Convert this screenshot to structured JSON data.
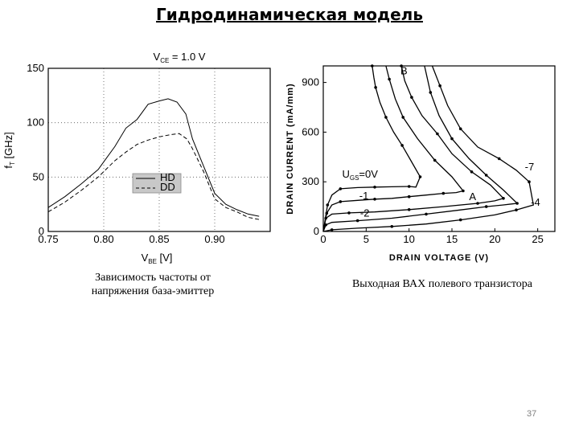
{
  "page": {
    "title": "Гидродинамическая модель",
    "caption_left_1": "Зависимость частоты от",
    "caption_left_2": "напряжения база-эмиттер",
    "caption_right": "Выходная ВАХ полевого транзистора",
    "page_number": "37"
  },
  "chart_data": [
    {
      "type": "line",
      "title": "V_CE = 1.0 V",
      "title_parts": {
        "main": "V",
        "sub": "CE",
        "rest": " = 1.0 V"
      },
      "xlabel_parts": {
        "main": "V",
        "sub": "BE",
        "rest": " [V]"
      },
      "ylabel_parts": {
        "main": "f",
        "sub": "T",
        "rest": " [GHz]"
      },
      "xlim": [
        0.75,
        0.95
      ],
      "ylim": [
        0,
        150
      ],
      "xticks": [
        0.75,
        0.8,
        0.85,
        0.9
      ],
      "xtick_labels": [
        "0.75",
        "0.80",
        "0.85",
        "0.90"
      ],
      "yticks": [
        0,
        50,
        100,
        150
      ],
      "ytick_labels": [
        "0",
        "50",
        "100",
        "150"
      ],
      "grid": "dotted",
      "legend_position": "center",
      "series": [
        {
          "name": "HD",
          "style": "solid",
          "x": [
            0.75,
            0.765,
            0.78,
            0.795,
            0.81,
            0.82,
            0.83,
            0.84,
            0.85,
            0.858,
            0.866,
            0.874,
            0.88,
            0.89,
            0.9,
            0.91,
            0.92,
            0.93,
            0.94
          ],
          "y": [
            22,
            32,
            44,
            57,
            78,
            95,
            103,
            117,
            120,
            122,
            119,
            108,
            85,
            60,
            35,
            25,
            20,
            16,
            14
          ]
        },
        {
          "name": "DD",
          "style": "dashed",
          "x": [
            0.75,
            0.765,
            0.78,
            0.795,
            0.81,
            0.82,
            0.83,
            0.84,
            0.85,
            0.86,
            0.868,
            0.875,
            0.88,
            0.89,
            0.9,
            0.91,
            0.92,
            0.93,
            0.94
          ],
          "y": [
            18,
            27,
            38,
            50,
            65,
            73,
            80,
            84,
            87,
            89,
            90,
            85,
            76,
            55,
            30,
            22,
            18,
            13,
            11
          ]
        }
      ]
    },
    {
      "type": "line",
      "xlabel": "DRAIN VOLTAGE (V)",
      "ylabel": "DRAIN CURRENT (mA/mm)",
      "xlim": [
        0,
        27
      ],
      "ylim": [
        0,
        1000
      ],
      "xticks": [
        0,
        5,
        10,
        15,
        20,
        25
      ],
      "xtick_labels": [
        "0",
        "5",
        "10",
        "15",
        "20",
        "25"
      ],
      "yticks": [
        0,
        300,
        600,
        900
      ],
      "ytick_labels": [
        "0",
        "300",
        "600",
        "900"
      ],
      "annotations": [
        {
          "text": "B",
          "x": 9,
          "y": 950
        },
        {
          "text": "A",
          "x": 17,
          "y": 190
        },
        {
          "text": "-7",
          "x": 23.5,
          "y": 370
        },
        {
          "text": "-4",
          "x": 24.2,
          "y": 155
        },
        {
          "text": "-1",
          "x": 4.2,
          "y": 195
        },
        {
          "text": "-2",
          "x": 4.3,
          "y": 90
        }
      ],
      "gate_label": {
        "main": "U",
        "sub": "GS",
        "rest": "=0V",
        "x": 2.2,
        "y": 325
      },
      "series": [
        {
          "name": "0V",
          "x": [
            0,
            0.5,
            1.0,
            2,
            4,
            6,
            8,
            10,
            10.8,
            11.3,
            10.3,
            9.2,
            8.2,
            7.3,
            6.6,
            6.1,
            5.9,
            5.7
          ],
          "y": [
            0,
            160,
            220,
            258,
            265,
            268,
            270,
            272,
            268,
            330,
            420,
            520,
            600,
            690,
            780,
            870,
            930,
            1000
          ]
        },
        {
          "name": "-1",
          "x": [
            0,
            0.4,
            1,
            2,
            4,
            6,
            8,
            10,
            12,
            14,
            15.5,
            16.3,
            15.0,
            13.0,
            11.0,
            9.3,
            8.4,
            7.7,
            7.3
          ],
          "y": [
            0,
            110,
            160,
            180,
            188,
            195,
            200,
            210,
            220,
            230,
            235,
            245,
            330,
            430,
            560,
            690,
            800,
            920,
            1000
          ]
        },
        {
          "name": "-2",
          "x": [
            0,
            0.3,
            1,
            3,
            6,
            10,
            14,
            18,
            20,
            21.0,
            19.5,
            17.3,
            15.0,
            13.3,
            11.5,
            10.3,
            9.5,
            9.1
          ],
          "y": [
            0,
            80,
            105,
            112,
            118,
            132,
            150,
            170,
            185,
            200,
            280,
            360,
            470,
            590,
            700,
            810,
            910,
            1000
          ]
        },
        {
          "name": "-4",
          "x": [
            0,
            0.3,
            1,
            4,
            8,
            12,
            16,
            19,
            21,
            22.6,
            21.0,
            19.0,
            17.0,
            15.0,
            13.5,
            12.5,
            11.8
          ],
          "y": [
            0,
            40,
            55,
            65,
            80,
            105,
            130,
            150,
            160,
            170,
            250,
            340,
            440,
            560,
            700,
            840,
            1000
          ]
        },
        {
          "name": "-7",
          "x": [
            0,
            1,
            4,
            8,
            12,
            16,
            20,
            22.5,
            24.5,
            24.0,
            22.5,
            20.5,
            18.0,
            16.0,
            14.5,
            13.6,
            12.7
          ],
          "y": [
            0,
            10,
            20,
            30,
            45,
            70,
            100,
            130,
            160,
            300,
            370,
            440,
            510,
            620,
            760,
            880,
            1000
          ]
        }
      ]
    }
  ]
}
